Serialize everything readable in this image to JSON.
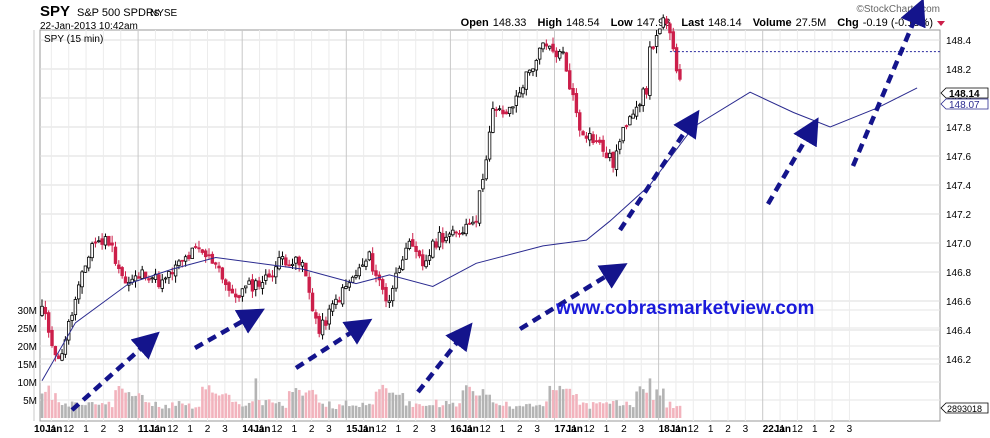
{
  "header": {
    "symbol": "SPY",
    "name": "S&P 500 SPDRs",
    "exchange": "NYSE",
    "datetime": "22-Jan-2013 10:42am",
    "quote_parts": [
      {
        "label": "Open",
        "value": "148.33"
      },
      {
        "label": "High",
        "value": "148.54"
      },
      {
        "label": "Low",
        "value": "147.98"
      },
      {
        "label": "Last",
        "value": "148.14"
      },
      {
        "label": "Volume",
        "value": "27.5M"
      },
      {
        "label": "Chg",
        "value": "-0.19 (-0.13%)"
      }
    ],
    "watermark": "©StockCharts.com",
    "legend": "SPY (15 min)"
  },
  "promo_text": "www.cobrasmarketview.com",
  "colors": {
    "up_candle": "#000000",
    "down_candle": "#cc1f4a",
    "moving_average": "#2a2a8f",
    "arrow": "#14148c",
    "promo": "#1a1adb",
    "grid": "#dcdcdc",
    "volume_up": "#b4b4b4",
    "volume_down": "#f2b3bd",
    "last_price_line": "#2a2a9f"
  },
  "chart_data": {
    "type": "candlestick",
    "interval": "15 min",
    "price_axis": {
      "ticks": [
        "146.2",
        "146.4",
        "146.6",
        "146.8",
        "147.0",
        "147.2",
        "147.4",
        "147.6",
        "147.8",
        "148.0",
        "148.2",
        "148.4"
      ],
      "range": [
        146.0,
        148.6
      ]
    },
    "price_labels": {
      "last": "148.14",
      "moving_average": "148.07"
    },
    "volume_axis": {
      "ticks": [
        "5M",
        "10M",
        "15M",
        "20M",
        "25M",
        "30M"
      ],
      "range": [
        0,
        36
      ],
      "unit": "M",
      "last_volume_label": "2893018"
    },
    "x_axis_ticks": [
      "10Jan",
      "11",
      "12",
      "1",
      "2",
      "3",
      "11Jan",
      "11",
      "12",
      "1",
      "2",
      "3",
      "14Jan",
      "11",
      "12",
      "1",
      "2",
      "3",
      "15Jan",
      "11",
      "12",
      "1",
      "2",
      "3",
      "16Jan",
      "11",
      "12",
      "1",
      "2",
      "3",
      "17Jan",
      "11",
      "12",
      "1",
      "2",
      "3",
      "18Jan",
      "11",
      "12",
      "1",
      "2",
      "3",
      "22Jan",
      "11",
      "12",
      "1",
      "2",
      "3"
    ],
    "sessions": [
      {
        "date": "10Jan",
        "key_prices": [
          146.55,
          146.18,
          146.6,
          147.0,
          147.02,
          146.72
        ]
      },
      {
        "date": "11Jan",
        "key_prices": [
          146.72,
          146.8,
          146.72,
          146.85,
          146.95,
          146.88
        ]
      },
      {
        "date": "14Jan",
        "key_prices": [
          146.88,
          146.62,
          146.7,
          146.75,
          146.9,
          146.85
        ]
      },
      {
        "date": "15Jan",
        "key_prices": [
          146.85,
          146.38,
          146.6,
          146.75,
          146.9,
          146.62
        ]
      },
      {
        "date": "16Jan",
        "key_prices": [
          146.62,
          147.0,
          146.85,
          147.05,
          147.05,
          147.18
        ]
      },
      {
        "date": "17Jan",
        "key_prices": [
          147.18,
          147.9,
          147.9,
          148.15,
          148.35,
          148.3
        ]
      },
      {
        "date": "18Jan",
        "key_prices": [
          148.3,
          147.8,
          147.7,
          147.55,
          147.9,
          148.05
        ]
      },
      {
        "date": "22Jan",
        "key_prices": [
          148.33,
          148.54,
          148.14
        ]
      }
    ],
    "moving_average_key_points": [
      {
        "x": 0,
        "y": 146.05
      },
      {
        "x": 10,
        "y": 146.45
      },
      {
        "x": 26,
        "y": 146.72
      },
      {
        "x": 39,
        "y": 146.82
      },
      {
        "x": 52,
        "y": 146.9
      },
      {
        "x": 78,
        "y": 146.82
      },
      {
        "x": 94,
        "y": 146.72
      },
      {
        "x": 104,
        "y": 146.78
      },
      {
        "x": 117,
        "y": 146.7
      },
      {
        "x": 130,
        "y": 146.86
      },
      {
        "x": 150,
        "y": 146.98
      },
      {
        "x": 163,
        "y": 147.02
      },
      {
        "x": 170,
        "y": 147.15
      },
      {
        "x": 182,
        "y": 147.4
      },
      {
        "x": 195,
        "y": 147.8
      },
      {
        "x": 212,
        "y": 148.04
      },
      {
        "x": 225,
        "y": 147.9
      },
      {
        "x": 236,
        "y": 147.8
      },
      {
        "x": 250,
        "y": 147.93
      },
      {
        "x": 262,
        "y": 148.07
      }
    ],
    "volume_pattern": [
      6,
      2.5,
      2.5,
      3,
      2.5,
      7
    ],
    "volume_spikes": [
      {
        "x": 2,
        "v": 9
      },
      {
        "x": 3,
        "v": 5
      },
      {
        "x": 64,
        "v": 11
      },
      {
        "x": 65,
        "v": 5
      },
      {
        "x": 104,
        "v": 7
      },
      {
        "x": 156,
        "v": 8
      },
      {
        "x": 182,
        "v": 11
      },
      {
        "x": 183,
        "v": 5
      },
      {
        "x": 208,
        "v": 7
      },
      {
        "x": 232,
        "v": 33
      },
      {
        "x": 243,
        "v": 8
      },
      {
        "x": 260,
        "v": 22
      },
      {
        "x": 261,
        "v": 6
      },
      {
        "x": 263,
        "v": 6
      }
    ]
  }
}
